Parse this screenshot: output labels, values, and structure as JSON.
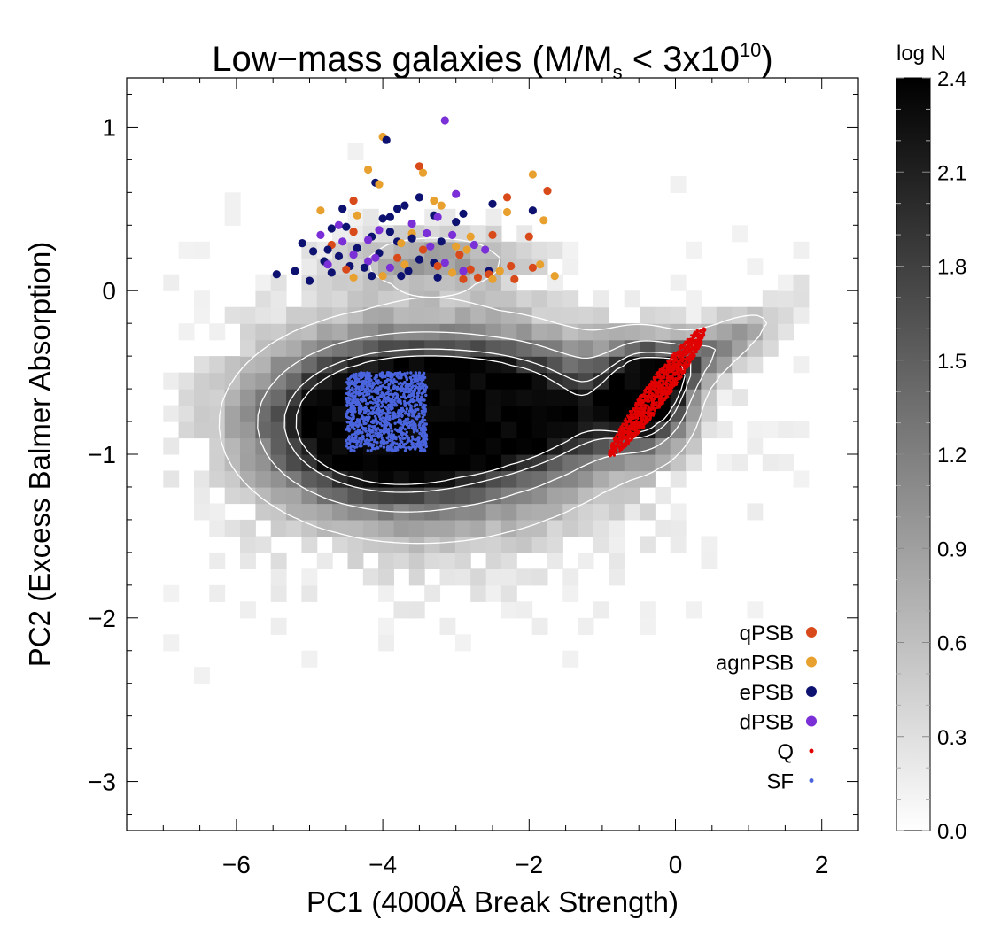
{
  "chart_data": {
    "type": "heatmap",
    "title": {
      "prefix": "Low−mass galaxies (M/M",
      "subscript": "s",
      "middle": " < 3x10",
      "superscript": "10",
      "suffix": ")"
    },
    "xlabel": "PC1 (4000Å Break Strength)",
    "ylabel": "PC2 (Excess Balmer Absorption)",
    "xlim": [
      -7.5,
      2.5
    ],
    "ylim": [
      -3.3,
      1.3
    ],
    "xticks": [
      -6,
      -4,
      -2,
      0,
      2
    ],
    "xtick_labels": [
      "−6",
      "−4",
      "−2",
      "0",
      "2"
    ],
    "yticks": [
      1,
      0,
      -1,
      -2,
      -3
    ],
    "ytick_labels": [
      "1",
      "0",
      "−1",
      "−2",
      "−3"
    ],
    "colorbar": {
      "label": "log N",
      "range": [
        0.0,
        2.4
      ],
      "ticks": [
        "0.0",
        "0.3",
        "0.6",
        "0.9",
        "1.2",
        "1.5",
        "1.8",
        "2.1",
        "2.4"
      ]
    },
    "legend_position": "bottom-right",
    "series": [
      {
        "name": "qPSB",
        "color": "#d94a1a",
        "marker": "large-dot"
      },
      {
        "name": "agnPSB",
        "color": "#e8a02e",
        "marker": "large-dot"
      },
      {
        "name": "ePSB",
        "color": "#0d1170",
        "marker": "large-dot"
      },
      {
        "name": "dPSB",
        "color": "#7b2fd6",
        "marker": "large-dot"
      },
      {
        "name": "Q",
        "color": "#e00000",
        "marker": "small-dot"
      },
      {
        "name": "SF",
        "color": "#4a64dd",
        "marker": "small-dot"
      }
    ],
    "psb_points": [
      {
        "series": "agnPSB",
        "x": -4.0,
        "y": 0.94
      },
      {
        "series": "ePSB",
        "x": -3.95,
        "y": 0.92
      },
      {
        "series": "dPSB",
        "x": -3.15,
        "y": 1.04
      },
      {
        "series": "qPSB",
        "x": -3.5,
        "y": 0.76
      },
      {
        "series": "agnPSB",
        "x": -4.2,
        "y": 0.74
      },
      {
        "series": "agnPSB",
        "x": -3.45,
        "y": 0.72
      },
      {
        "series": "agnPSB",
        "x": -1.95,
        "y": 0.71
      },
      {
        "series": "ePSB",
        "x": -4.1,
        "y": 0.66
      },
      {
        "series": "agnPSB",
        "x": -4.05,
        "y": 0.65
      },
      {
        "series": "qPSB",
        "x": -1.75,
        "y": 0.61
      },
      {
        "series": "dPSB",
        "x": -3.0,
        "y": 0.59
      },
      {
        "series": "ePSB",
        "x": -3.5,
        "y": 0.57
      },
      {
        "series": "qPSB",
        "x": -2.3,
        "y": 0.57
      },
      {
        "series": "agnPSB",
        "x": -3.3,
        "y": 0.55
      },
      {
        "series": "qPSB",
        "x": -4.4,
        "y": 0.55
      },
      {
        "series": "ePSB",
        "x": -2.5,
        "y": 0.53
      },
      {
        "series": "agnPSB",
        "x": -3.2,
        "y": 0.52
      },
      {
        "series": "ePSB",
        "x": -3.7,
        "y": 0.52
      },
      {
        "series": "ePSB",
        "x": -3.8,
        "y": 0.5
      },
      {
        "series": "ePSB",
        "x": -4.55,
        "y": 0.5
      },
      {
        "series": "agnPSB",
        "x": -4.85,
        "y": 0.49
      },
      {
        "series": "ePSB",
        "x": -1.95,
        "y": 0.49
      },
      {
        "series": "agnPSB",
        "x": -2.3,
        "y": 0.48
      },
      {
        "series": "ePSB",
        "x": -2.9,
        "y": 0.47
      },
      {
        "series": "ePSB",
        "x": -3.3,
        "y": 0.46
      },
      {
        "series": "agnPSB",
        "x": -4.35,
        "y": 0.46
      },
      {
        "series": "ePSB",
        "x": -3.9,
        "y": 0.45
      },
      {
        "series": "dPSB",
        "x": -3.25,
        "y": 0.45
      },
      {
        "series": "ePSB",
        "x": -4.0,
        "y": 0.44
      },
      {
        "series": "agnPSB",
        "x": -1.8,
        "y": 0.43
      },
      {
        "series": "ePSB",
        "x": -3.0,
        "y": 0.42
      },
      {
        "series": "dPSB",
        "x": -3.6,
        "y": 0.41
      },
      {
        "series": "dPSB",
        "x": -4.6,
        "y": 0.4
      },
      {
        "series": "ePSB",
        "x": -4.5,
        "y": 0.39
      },
      {
        "series": "ePSB",
        "x": -4.7,
        "y": 0.38
      },
      {
        "series": "dPSB",
        "x": -4.05,
        "y": 0.37
      },
      {
        "series": "ePSB",
        "x": -3.9,
        "y": 0.36
      },
      {
        "series": "qPSB",
        "x": -4.4,
        "y": 0.36
      },
      {
        "series": "agnPSB",
        "x": -3.6,
        "y": 0.35
      },
      {
        "series": "dPSB",
        "x": -3.4,
        "y": 0.35
      },
      {
        "series": "dPSB",
        "x": -4.85,
        "y": 0.34
      },
      {
        "series": "dPSB",
        "x": -3.05,
        "y": 0.34
      },
      {
        "series": "qPSB",
        "x": -2.5,
        "y": 0.34
      },
      {
        "series": "agnPSB",
        "x": -2.8,
        "y": 0.33
      },
      {
        "series": "ePSB",
        "x": -4.15,
        "y": 0.33
      },
      {
        "series": "qPSB",
        "x": -2.0,
        "y": 0.33
      },
      {
        "series": "ePSB",
        "x": -3.6,
        "y": 0.32
      },
      {
        "series": "dPSB",
        "x": -4.2,
        "y": 0.31
      },
      {
        "series": "ePSB",
        "x": -3.8,
        "y": 0.3
      },
      {
        "series": "dPSB",
        "x": -4.55,
        "y": 0.3
      },
      {
        "series": "ePSB",
        "x": -3.2,
        "y": 0.3
      },
      {
        "series": "ePSB",
        "x": -5.1,
        "y": 0.29
      },
      {
        "series": "agnPSB",
        "x": -3.75,
        "y": 0.29
      },
      {
        "series": "qPSB",
        "x": -4.7,
        "y": 0.28
      },
      {
        "series": "dPSB",
        "x": -2.75,
        "y": 0.28
      },
      {
        "series": "agnPSB",
        "x": -3.0,
        "y": 0.27
      },
      {
        "series": "dPSB",
        "x": -3.35,
        "y": 0.27
      },
      {
        "series": "ePSB",
        "x": -4.35,
        "y": 0.26
      },
      {
        "series": "ePSB",
        "x": -4.75,
        "y": 0.25
      },
      {
        "series": "qPSB",
        "x": -3.45,
        "y": 0.25
      },
      {
        "series": "agnPSB",
        "x": -2.85,
        "y": 0.25
      },
      {
        "series": "dPSB",
        "x": -2.6,
        "y": 0.25
      },
      {
        "series": "ePSB",
        "x": -4.95,
        "y": 0.24
      },
      {
        "series": "ePSB",
        "x": -4.05,
        "y": 0.23
      },
      {
        "series": "qPSB",
        "x": -2.95,
        "y": 0.22
      },
      {
        "series": "dPSB",
        "x": -4.4,
        "y": 0.22
      },
      {
        "series": "ePSB",
        "x": -4.6,
        "y": 0.21
      },
      {
        "series": "dPSB",
        "x": -4.1,
        "y": 0.2
      },
      {
        "series": "qPSB",
        "x": -3.8,
        "y": 0.2
      },
      {
        "series": "ePSB",
        "x": -3.5,
        "y": 0.19
      },
      {
        "series": "dPSB",
        "x": -4.2,
        "y": 0.18
      },
      {
        "series": "ePSB",
        "x": -4.8,
        "y": 0.18
      },
      {
        "series": "ePSB",
        "x": -3.3,
        "y": 0.17
      },
      {
        "series": "dPSB",
        "x": -3.15,
        "y": 0.17
      },
      {
        "series": "agnPSB",
        "x": -3.7,
        "y": 0.16
      },
      {
        "series": "dPSB",
        "x": -4.75,
        "y": 0.16
      },
      {
        "series": "ePSB",
        "x": -4.45,
        "y": 0.15
      },
      {
        "series": "qPSB",
        "x": -3.25,
        "y": 0.15
      },
      {
        "series": "dPSB",
        "x": -3.9,
        "y": 0.14
      },
      {
        "series": "ePSB",
        "x": -4.25,
        "y": 0.14
      },
      {
        "series": "qPSB",
        "x": -4.5,
        "y": 0.13
      },
      {
        "series": "qPSB",
        "x": -2.8,
        "y": 0.13
      },
      {
        "series": "ePSB",
        "x": -3.65,
        "y": 0.12
      },
      {
        "series": "agnPSB",
        "x": -2.4,
        "y": 0.12
      },
      {
        "series": "ePSB",
        "x": -5.2,
        "y": 0.12
      },
      {
        "series": "dPSB",
        "x": -2.9,
        "y": 0.12
      },
      {
        "series": "ePSB",
        "x": -2.55,
        "y": 0.12
      },
      {
        "series": "qPSB",
        "x": -1.95,
        "y": 0.14
      },
      {
        "series": "agnPSB",
        "x": -1.85,
        "y": 0.16
      },
      {
        "series": "qPSB",
        "x": -2.25,
        "y": 0.15
      },
      {
        "series": "ePSB",
        "x": -4.7,
        "y": 0.11
      },
      {
        "series": "agnPSB",
        "x": -3.05,
        "y": 0.11
      },
      {
        "series": "ePSB",
        "x": -5.45,
        "y": 0.1
      },
      {
        "series": "qPSB",
        "x": -2.55,
        "y": 0.1
      },
      {
        "series": "ePSB",
        "x": -3.75,
        "y": 0.09
      },
      {
        "series": "agnPSB",
        "x": -4.0,
        "y": 0.09
      },
      {
        "series": "ePSB",
        "x": -4.15,
        "y": 0.09
      },
      {
        "series": "qPSB",
        "x": -2.7,
        "y": 0.08
      },
      {
        "series": "ePSB",
        "x": -3.25,
        "y": 0.08
      },
      {
        "series": "agnPSB",
        "x": -1.65,
        "y": 0.09
      },
      {
        "series": "agnPSB",
        "x": -4.4,
        "y": 0.08
      },
      {
        "series": "qPSB",
        "x": -2.2,
        "y": 0.07
      },
      {
        "series": "qPSB",
        "x": -2.9,
        "y": 0.07
      },
      {
        "series": "ePSB",
        "x": -5.0,
        "y": 0.06
      },
      {
        "series": "agnPSB",
        "x": -2.5,
        "y": 0.07
      }
    ],
    "clusters": [
      {
        "series": "SF",
        "shape": "rectangle",
        "x_range": [
          -4.5,
          -3.4
        ],
        "y_range": [
          -0.98,
          -0.5
        ]
      },
      {
        "series": "Q",
        "shape": "ellipse",
        "center": [
          -0.25,
          -0.62
        ],
        "extent": "from (-0.9,-0.98) to (0.4,-0.22)"
      }
    ],
    "density": {
      "description": "2D histogram of log N (grayscale) with white contours",
      "bin_width_x": 0.21,
      "bin_width_y": 0.1,
      "peaks": [
        {
          "x": -4.1,
          "y": -0.78,
          "log_n": 2.4
        },
        {
          "x": -0.4,
          "y": -0.62,
          "log_n": 2.35
        }
      ],
      "contour_levels": [
        0.6,
        1.2,
        1.8,
        2.1
      ]
    }
  }
}
